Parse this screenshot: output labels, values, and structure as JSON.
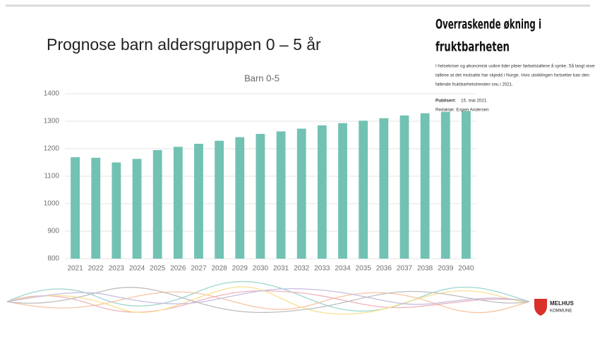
{
  "slide_title": "Prognose barn aldersgruppen 0 – 5 år",
  "article": {
    "title_lines": [
      "Overraskende økning i",
      "fruktbarheten"
    ],
    "paragraph_lines": [
      "I helsekriser og økonomisk usikre tider pleier fødselstallene å synke. Så langt viser",
      "tallene at det motsatte har skjedd i Norge. Hvis utviklingen fortsetter kan den",
      "fallende fruktbarhetstrenden snu i 2021."
    ],
    "published_label": "Publisert:",
    "published_date": "15. mai 2021",
    "editor": "Redaktør: Espen Andersen"
  },
  "logo": {
    "line1": "MELHUS",
    "line2": "KOMMUNE"
  },
  "chart_data": {
    "type": "bar",
    "title": "Barn 0-5",
    "categories": [
      "2021",
      "2022",
      "2023",
      "2024",
      "2025",
      "2026",
      "2027",
      "2028",
      "2029",
      "2030",
      "2031",
      "2032",
      "2033",
      "2034",
      "2035",
      "2036",
      "2037",
      "2038",
      "2039",
      "2040"
    ],
    "values": [
      1169,
      1167,
      1150,
      1163,
      1195,
      1207,
      1218,
      1229,
      1242,
      1254,
      1263,
      1273,
      1285,
      1293,
      1302,
      1311,
      1321,
      1329,
      1334,
      1337
    ],
    "color": "#72c2b3",
    "ylim": [
      800,
      1400
    ],
    "yticks": [
      800,
      900,
      1000,
      1100,
      1200,
      1300,
      1400
    ],
    "grid": true
  }
}
